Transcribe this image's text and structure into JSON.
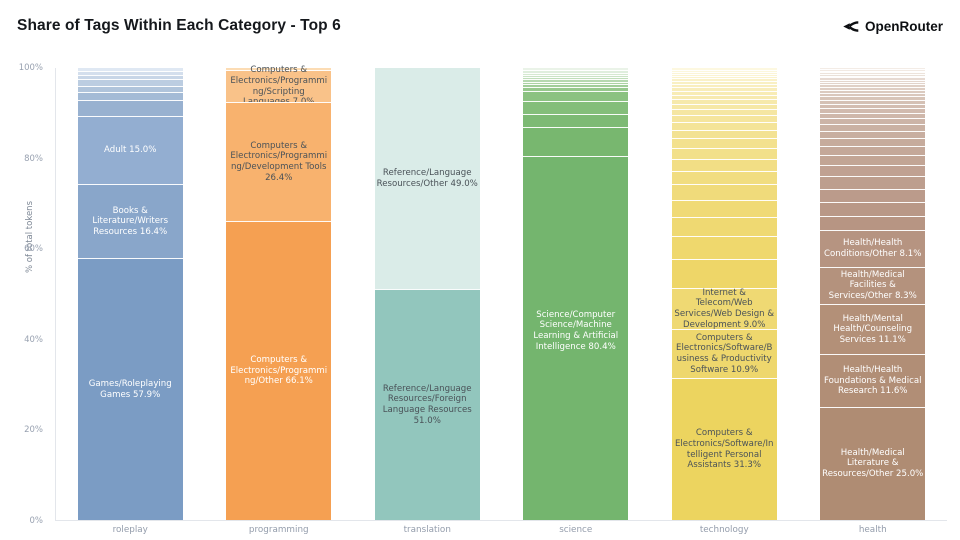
{
  "header": {
    "title": "Share of Tags Within Each Category - Top 6",
    "brand": "OpenRouter"
  },
  "chart_data": {
    "type": "bar",
    "stacked": true,
    "title": "Share of Tags Within Each Category - Top 6",
    "xlabel": "",
    "ylabel": "% of total tokens",
    "ylim": [
      0,
      100
    ],
    "yticks": [
      {
        "label": "0%",
        "value": 0
      },
      {
        "label": "20%",
        "value": 20
      },
      {
        "label": "40%",
        "value": 40
      },
      {
        "label": "60%",
        "value": 60
      },
      {
        "label": "80%",
        "value": 80
      },
      {
        "label": "100%",
        "value": 100
      }
    ],
    "categories": [
      "roleplay",
      "programming",
      "translation",
      "science",
      "technology",
      "health"
    ],
    "grid": false,
    "legend": false,
    "note": "segments listed top-to-bottom; unlabeled segments are small remainder tags",
    "bars": [
      {
        "category": "roleplay",
        "base_color": "#7b9cc4",
        "segments": [
          {
            "name": "",
            "pct": 0.7,
            "display": "",
            "color": "#dfe8f3",
            "text": "light"
          },
          {
            "name": "",
            "pct": 0.8,
            "display": "",
            "color": "#d4dfed",
            "text": "light"
          },
          {
            "name": "",
            "pct": 1.0,
            "display": "",
            "color": "#c8d6e7",
            "text": "light"
          },
          {
            "name": "",
            "pct": 1.4,
            "display": "",
            "color": "#bccde1",
            "text": "light"
          },
          {
            "name": "",
            "pct": 1.5,
            "display": "",
            "color": "#b0c4db",
            "text": "light"
          },
          {
            "name": "",
            "pct": 1.7,
            "display": "",
            "color": "#a4bbd6",
            "text": "light"
          },
          {
            "name": "",
            "pct": 3.6,
            "display": "",
            "color": "#98b1d0",
            "text": "light"
          },
          {
            "name": "Adult",
            "pct": 15.0,
            "display": "Adult 15.0%",
            "color": "#93aed1",
            "text": "light"
          },
          {
            "name": "Books & Literature/Writers Resources",
            "pct": 16.4,
            "display": "Books & Literature/Writers Resources 16.4%",
            "color": "#89a6ca",
            "text": "light"
          },
          {
            "name": "Games/Roleplaying Games",
            "pct": 57.9,
            "display": "Games/Roleplaying Games 57.9%",
            "color": "#7b9cc4",
            "text": "light"
          }
        ]
      },
      {
        "category": "programming",
        "base_color": "#f5a052",
        "segments": [
          {
            "name": "",
            "pct": 0.5,
            "display": "",
            "color": "#fcdcb4",
            "text": "dark"
          },
          {
            "name": "Computers & Electronics/Programming/Scripting Languages",
            "pct": 7.0,
            "display": "Computers & Electronics/Programming/Scripting Languages 7.0%",
            "color": "#f9c289",
            "text": "dark"
          },
          {
            "name": "Computers & Electronics/Programming/Development Tools",
            "pct": 26.4,
            "display": "Computers & Electronics/Programming/Development Tools 26.4%",
            "color": "#f8b26e",
            "text": "dark"
          },
          {
            "name": "Computers & Electronics/Programming/Other",
            "pct": 66.1,
            "display": "Computers & Electronics/Programming/Other 66.1%",
            "color": "#f5a052",
            "text": "light"
          }
        ]
      },
      {
        "category": "translation",
        "base_color": "#92c6bd",
        "segments": [
          {
            "name": "Reference/Language Resources/Other",
            "pct": 49.0,
            "display": "Reference/Language Resources/Other 49.0%",
            "color": "#daece8",
            "text": "dark"
          },
          {
            "name": "Reference/Language Resources/Foreign Language Resources",
            "pct": 51.0,
            "display": "Reference/Language Resources/Foreign Language Resources 51.0%",
            "color": "#92c6bd",
            "text": "dark"
          }
        ]
      },
      {
        "category": "science",
        "base_color": "#74b56e",
        "segments": [
          {
            "name": "",
            "pct": 0.5,
            "display": "",
            "color": "#eaf3e8",
            "text": "dark"
          },
          {
            "name": "",
            "pct": 0.5,
            "display": "",
            "color": "#dfeedd",
            "text": "dark"
          },
          {
            "name": "",
            "pct": 0.5,
            "display": "",
            "color": "#d5e9d1",
            "text": "dark"
          },
          {
            "name": "",
            "pct": 0.5,
            "display": "",
            "color": "#cae3c6",
            "text": "dark"
          },
          {
            "name": "",
            "pct": 0.5,
            "display": "",
            "color": "#c0deba",
            "text": "dark"
          },
          {
            "name": "",
            "pct": 0.5,
            "display": "",
            "color": "#b5d8af",
            "text": "dark"
          },
          {
            "name": "",
            "pct": 0.6,
            "display": "",
            "color": "#abd3a3",
            "text": "dark"
          },
          {
            "name": "",
            "pct": 0.7,
            "display": "",
            "color": "#a0cd98",
            "text": "dark"
          },
          {
            "name": "",
            "pct": 0.9,
            "display": "",
            "color": "#96c88c",
            "text": "dark"
          },
          {
            "name": "",
            "pct": 2.2,
            "display": "",
            "color": "#8bc281",
            "text": "dark"
          },
          {
            "name": "",
            "pct": 2.7,
            "display": "",
            "color": "#84be7a",
            "text": "dark"
          },
          {
            "name": "",
            "pct": 3.0,
            "display": "",
            "color": "#7dba74",
            "text": "dark"
          },
          {
            "name": "",
            "pct": 6.5,
            "display": "",
            "color": "#78b76f",
            "text": "dark"
          },
          {
            "name": "Science/Computer Science/Machine Learning & Artificial Intelligence",
            "pct": 80.4,
            "display": "Science/Computer Science/Machine Learning & Artificial Intelligence 80.4%",
            "color": "#74b56e",
            "text": "light",
            "label_offset": "-18%"
          }
        ]
      },
      {
        "category": "technology",
        "base_color": "#ecd45f",
        "segments": [
          {
            "name": "",
            "pct": 0.4,
            "display": "",
            "color": "#fdf8e0",
            "text": "dark"
          },
          {
            "name": "",
            "pct": 0.4,
            "display": "",
            "color": "#fcf7db",
            "text": "dark"
          },
          {
            "name": "",
            "pct": 0.5,
            "display": "",
            "color": "#fcf5d6",
            "text": "dark"
          },
          {
            "name": "",
            "pct": 0.5,
            "display": "",
            "color": "#fbf4d2",
            "text": "dark"
          },
          {
            "name": "",
            "pct": 0.5,
            "display": "",
            "color": "#fbf3cd",
            "text": "dark"
          },
          {
            "name": "",
            "pct": 0.6,
            "display": "",
            "color": "#faf1c8",
            "text": "dark"
          },
          {
            "name": "",
            "pct": 0.6,
            "display": "",
            "color": "#f9f0c3",
            "text": "dark"
          },
          {
            "name": "",
            "pct": 0.7,
            "display": "",
            "color": "#f9eebe",
            "text": "dark"
          },
          {
            "name": "",
            "pct": 0.8,
            "display": "",
            "color": "#f8edba",
            "text": "dark"
          },
          {
            "name": "",
            "pct": 0.9,
            "display": "",
            "color": "#f8ecb5",
            "text": "dark"
          },
          {
            "name": "",
            "pct": 1.0,
            "display": "",
            "color": "#f7eab0",
            "text": "dark"
          },
          {
            "name": "",
            "pct": 1.1,
            "display": "",
            "color": "#f6e9ab",
            "text": "dark"
          },
          {
            "name": "",
            "pct": 1.2,
            "display": "",
            "color": "#f6e8a6",
            "text": "dark"
          },
          {
            "name": "",
            "pct": 1.3,
            "display": "",
            "color": "#f5e6a2",
            "text": "dark"
          },
          {
            "name": "",
            "pct": 1.5,
            "display": "",
            "color": "#f5e59d",
            "text": "dark"
          },
          {
            "name": "",
            "pct": 1.7,
            "display": "",
            "color": "#f4e498",
            "text": "dark"
          },
          {
            "name": "",
            "pct": 1.9,
            "display": "",
            "color": "#f3e293",
            "text": "dark"
          },
          {
            "name": "",
            "pct": 2.1,
            "display": "",
            "color": "#f3e18e",
            "text": "dark"
          },
          {
            "name": "",
            "pct": 2.4,
            "display": "",
            "color": "#f2e08a",
            "text": "dark"
          },
          {
            "name": "",
            "pct": 2.7,
            "display": "",
            "color": "#f2de85",
            "text": "dark"
          },
          {
            "name": "",
            "pct": 3.0,
            "display": "",
            "color": "#f1dd80",
            "text": "dark"
          },
          {
            "name": "",
            "pct": 3.4,
            "display": "",
            "color": "#f0db7b",
            "text": "dark"
          },
          {
            "name": "",
            "pct": 3.8,
            "display": "",
            "color": "#f0da76",
            "text": "dark"
          },
          {
            "name": "",
            "pct": 4.3,
            "display": "",
            "color": "#efd972",
            "text": "dark"
          },
          {
            "name": "",
            "pct": 4.9,
            "display": "",
            "color": "#efd86d",
            "text": "dark"
          },
          {
            "name": "",
            "pct": 6.6,
            "display": "",
            "color": "#eed668",
            "text": "dark"
          },
          {
            "name": "Internet & Telecom/Web Services/Web Design & Development",
            "pct": 9.0,
            "display": "Internet & Telecom/Web Services/Web Design & Development 9.0%",
            "color": "#efd973",
            "text": "dark"
          },
          {
            "name": "Computers & Electronics/Software/Business & Productivity Software",
            "pct": 10.9,
            "display": "Computers & Electronics/Software/Business & Productivity Software 10.9%",
            "color": "#eed76d",
            "text": "dark"
          },
          {
            "name": "Computers & Electronics/Software/Intelligent Personal Assistants",
            "pct": 31.3,
            "display": "Computers & Electronics/Software/Intelligent Personal Assistants 31.3%",
            "color": "#ecd45f",
            "text": "dark"
          }
        ]
      },
      {
        "category": "health",
        "base_color": "#b29179",
        "segments": [
          {
            "name": "",
            "pct": 0.3,
            "display": "",
            "color": "#f3ece6",
            "text": "dark"
          },
          {
            "name": "",
            "pct": 0.3,
            "display": "",
            "color": "#f1e9e2",
            "text": "dark"
          },
          {
            "name": "",
            "pct": 0.3,
            "display": "",
            "color": "#efe6df",
            "text": "dark"
          },
          {
            "name": "",
            "pct": 0.4,
            "display": "",
            "color": "#ede3db",
            "text": "dark"
          },
          {
            "name": "",
            "pct": 0.4,
            "display": "",
            "color": "#eae0d8",
            "text": "dark"
          },
          {
            "name": "",
            "pct": 0.4,
            "display": "",
            "color": "#e8dcd4",
            "text": "dark"
          },
          {
            "name": "",
            "pct": 0.5,
            "display": "",
            "color": "#e6d9d1",
            "text": "dark"
          },
          {
            "name": "",
            "pct": 0.5,
            "display": "",
            "color": "#e4d6cd",
            "text": "dark"
          },
          {
            "name": "",
            "pct": 0.5,
            "display": "",
            "color": "#e2d3ca",
            "text": "dark"
          },
          {
            "name": "",
            "pct": 0.6,
            "display": "",
            "color": "#e0d0c6",
            "text": "dark"
          },
          {
            "name": "",
            "pct": 0.6,
            "display": "",
            "color": "#decdc3",
            "text": "dark"
          },
          {
            "name": "",
            "pct": 0.7,
            "display": "",
            "color": "#dbcabf",
            "text": "dark"
          },
          {
            "name": "",
            "pct": 0.7,
            "display": "",
            "color": "#d9c7bc",
            "text": "dark"
          },
          {
            "name": "",
            "pct": 0.8,
            "display": "",
            "color": "#d7c4b8",
            "text": "dark"
          },
          {
            "name": "",
            "pct": 0.9,
            "display": "",
            "color": "#d5c1b5",
            "text": "dark"
          },
          {
            "name": "",
            "pct": 1.0,
            "display": "",
            "color": "#d3bdb1",
            "text": "dark"
          },
          {
            "name": "",
            "pct": 1.1,
            "display": "",
            "color": "#d1baae",
            "text": "dark"
          },
          {
            "name": "",
            "pct": 1.2,
            "display": "",
            "color": "#cfb7aa",
            "text": "dark"
          },
          {
            "name": "",
            "pct": 1.3,
            "display": "",
            "color": "#ccb4a7",
            "text": "dark"
          },
          {
            "name": "",
            "pct": 1.4,
            "display": "",
            "color": "#cab1a3",
            "text": "dark"
          },
          {
            "name": "",
            "pct": 1.6,
            "display": "",
            "color": "#c8aea0",
            "text": "dark"
          },
          {
            "name": "",
            "pct": 1.8,
            "display": "",
            "color": "#c6ab9c",
            "text": "dark"
          },
          {
            "name": "",
            "pct": 2.0,
            "display": "",
            "color": "#c4a899",
            "text": "dark"
          },
          {
            "name": "",
            "pct": 2.2,
            "display": "",
            "color": "#c2a595",
            "text": "dark"
          },
          {
            "name": "",
            "pct": 2.5,
            "display": "",
            "color": "#c0a192",
            "text": "dark"
          },
          {
            "name": "",
            "pct": 2.8,
            "display": "",
            "color": "#bd9e8e",
            "text": "dark"
          },
          {
            "name": "",
            "pct": 3.0,
            "display": "",
            "color": "#bb9b8b",
            "text": "dark"
          },
          {
            "name": "",
            "pct": 3.0,
            "display": "",
            "color": "#b99887",
            "text": "dark"
          },
          {
            "name": "",
            "pct": 3.1,
            "display": "",
            "color": "#b79583",
            "text": "dark"
          },
          {
            "name": "Health/Health Conditions/Other",
            "pct": 8.1,
            "display": "Health/Health Conditions/Other 8.1%",
            "color": "#b69481",
            "text": "light"
          },
          {
            "name": "Health/Medical Facilities & Services/Other",
            "pct": 8.3,
            "display": "Health/Medical Facilities & Services/Other 8.3%",
            "color": "#b4927d",
            "text": "light"
          },
          {
            "name": "Health/Mental Health/Counseling Services",
            "pct": 11.1,
            "display": "Health/Mental Health/Counseling Services 11.1%",
            "color": "#b39078",
            "text": "light"
          },
          {
            "name": "Health/Health Foundations & Medical Research",
            "pct": 11.6,
            "display": "Health/Health Foundations & Medical Research 11.6%",
            "color": "#b18e76",
            "text": "light"
          },
          {
            "name": "Health/Medical Literature & Resources/Other",
            "pct": 25.0,
            "display": "Health/Medical Literature & Resources/Other 25.0%",
            "color": "#af8c73",
            "text": "light"
          }
        ]
      }
    ]
  }
}
